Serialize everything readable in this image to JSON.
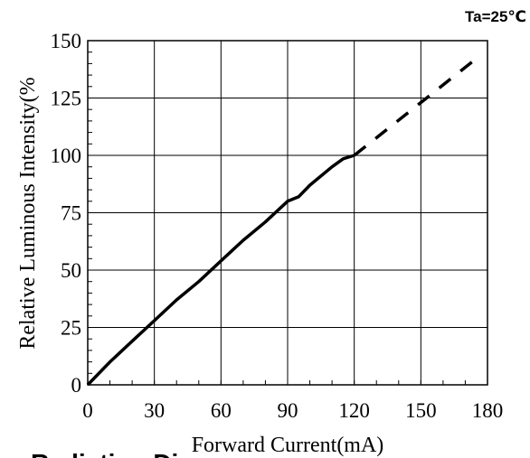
{
  "chart_data": {
    "type": "line",
    "title": "",
    "xlabel": "Forward Current(mA)",
    "ylabel": "Relative Luminous Intensity(%",
    "annotation": "Ta=25℃",
    "xlim": [
      0,
      180
    ],
    "ylim": [
      0,
      150
    ],
    "x_ticks": [
      "0",
      "30",
      "60",
      "90",
      "120",
      "150",
      "180"
    ],
    "y_ticks": [
      "0",
      "25",
      "50",
      "75",
      "100",
      "125",
      "150"
    ],
    "x_tick_values": [
      0,
      30,
      60,
      90,
      120,
      150,
      180
    ],
    "y_tick_values": [
      0,
      25,
      50,
      75,
      100,
      125,
      150
    ],
    "grid": true,
    "series": [
      {
        "style": "solid",
        "x": [
          0,
          10,
          20,
          30,
          40,
          50,
          60,
          70,
          80,
          90,
          95,
          100,
          110,
          115,
          120
        ],
        "y": [
          0,
          10,
          19,
          28,
          37,
          45,
          54,
          63,
          71,
          80,
          82,
          87,
          95,
          98.5,
          100
        ]
      },
      {
        "style": "dashed",
        "x": [
          120,
          176
        ],
        "y": [
          100,
          143
        ]
      }
    ]
  },
  "footer_text": "Radiation Di"
}
